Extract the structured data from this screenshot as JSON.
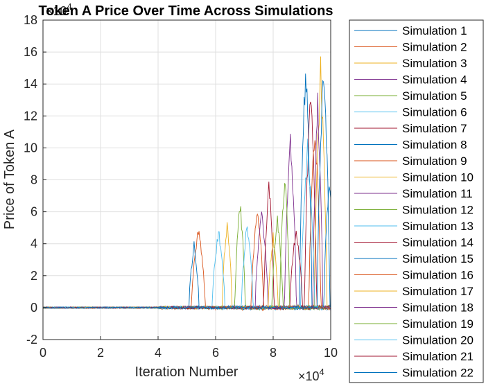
{
  "chart_data": {
    "type": "line",
    "title": "Token A Price Over Time Across Simulations",
    "xlabel": "Iteration Number",
    "ylabel": "Price of Token A",
    "x_exponent_label": "×10",
    "x_exponent_power": "4",
    "y_exponent_label": "×10",
    "y_exponent_power": "4",
    "x_scale": 10000,
    "y_scale": 10000,
    "xlim": [
      0,
      100000
    ],
    "ylim": [
      -20000,
      180000
    ],
    "x_tick_labels": [
      "0",
      "2",
      "4",
      "6",
      "8",
      "10"
    ],
    "y_tick_labels": [
      "-2",
      "0",
      "2",
      "4",
      "6",
      "8",
      "10",
      "12",
      "14",
      "16",
      "18"
    ],
    "grid": true,
    "legend_position": "outside-right",
    "series": [
      {
        "name": "Simulation 1",
        "color": "#0072BD",
        "spike_x": 91300,
        "spike_y": 160000
      },
      {
        "name": "Simulation 2",
        "color": "#D95319",
        "spike_x": 54000,
        "spike_y": 53000
      },
      {
        "name": "Simulation 3",
        "color": "#EDB120",
        "spike_x": 64000,
        "spike_y": 58000
      },
      {
        "name": "Simulation 4",
        "color": "#7E2F8E",
        "spike_x": 86000,
        "spike_y": 114000
      },
      {
        "name": "Simulation 5",
        "color": "#77AC30",
        "spike_x": 68500,
        "spike_y": 70000
      },
      {
        "name": "Simulation 6",
        "color": "#4DBEEE",
        "spike_x": 61000,
        "spike_y": 51000
      },
      {
        "name": "Simulation 7",
        "color": "#A2142F",
        "spike_x": 93000,
        "spike_y": 145000
      },
      {
        "name": "Simulation 8",
        "color": "#0072BD",
        "spike_x": 52500,
        "spike_y": 43000
      },
      {
        "name": "Simulation 9",
        "color": "#D95319",
        "spike_x": 74500,
        "spike_y": 68000
      },
      {
        "name": "Simulation 10",
        "color": "#EDB120",
        "spike_x": 96500,
        "spike_y": 158000
      },
      {
        "name": "Simulation 11",
        "color": "#7E2F8E",
        "spike_x": 76000,
        "spike_y": 63000
      },
      {
        "name": "Simulation 12",
        "color": "#77AC30",
        "spike_x": 84000,
        "spike_y": 89000
      },
      {
        "name": "Simulation 13",
        "color": "#4DBEEE",
        "spike_x": 71000,
        "spike_y": 56000
      },
      {
        "name": "Simulation 14",
        "color": "#A2142F",
        "spike_x": 78500,
        "spike_y": 83000
      },
      {
        "name": "Simulation 15",
        "color": "#0072BD",
        "spike_x": 99500,
        "spike_y": 84000
      },
      {
        "name": "Simulation 16",
        "color": "#D95319",
        "spike_x": 94500,
        "spike_y": 120000
      },
      {
        "name": "Simulation 17",
        "color": "#EDB120",
        "spike_x": 80000,
        "spike_y": 48000
      },
      {
        "name": "Simulation 18",
        "color": "#7E2F8E",
        "spike_x": 95500,
        "spike_y": 138000
      },
      {
        "name": "Simulation 19",
        "color": "#77AC30",
        "spike_x": 81500,
        "spike_y": 60000
      },
      {
        "name": "Simulation 20",
        "color": "#4DBEEE",
        "spike_x": 92000,
        "spike_y": 107000
      },
      {
        "name": "Simulation 21",
        "color": "#A2142F",
        "spike_x": 88000,
        "spike_y": 52000
      },
      {
        "name": "Simulation 22",
        "color": "#0072BD",
        "spike_x": 97500,
        "spike_y": 165000
      }
    ]
  }
}
